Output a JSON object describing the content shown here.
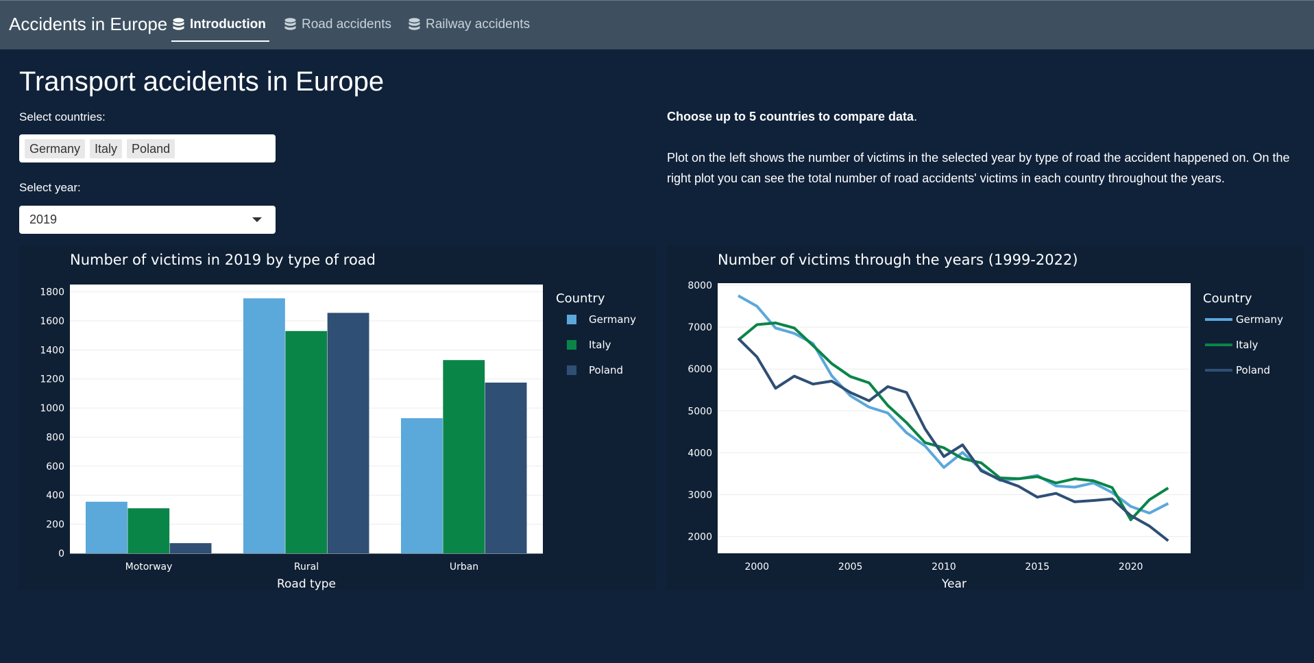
{
  "navbar": {
    "brand": "Accidents in Europe",
    "tabs": [
      {
        "label": "Introduction",
        "active": true
      },
      {
        "label": "Road accidents",
        "active": false
      },
      {
        "label": "Railway accidents",
        "active": false
      }
    ]
  },
  "page": {
    "title": "Transport accidents in Europe",
    "countries_label": "Select countries:",
    "selected_countries": [
      "Germany",
      "Italy",
      "Poland"
    ],
    "year_label": "Select year:",
    "selected_year": "2019",
    "intro_strong": "Choose up to 5 countries to compare data",
    "intro_period": ".",
    "intro_body": "Plot on the left shows the number of victims in the selected year by type of road the accident happened on. On the right plot you can see the total number of road accidents' victims in each country throughout the years."
  },
  "colors": {
    "Germany": "#5ba8db",
    "Italy": "#0a8548",
    "Poland": "#2f4f74"
  },
  "chart_data": [
    {
      "type": "bar",
      "title": "Number of victims in 2019 by type of road",
      "xlabel": "Road type",
      "ylabel": "",
      "categories": [
        "Motorway",
        "Rural",
        "Urban"
      ],
      "ylim": [
        0,
        1850
      ],
      "yticks": [
        0,
        200,
        400,
        600,
        800,
        1000,
        1200,
        1400,
        1600,
        1800
      ],
      "legend_title": "Country",
      "legend_position": "right",
      "series": [
        {
          "name": "Germany",
          "values": [
            355,
            1755,
            930
          ]
        },
        {
          "name": "Italy",
          "values": [
            310,
            1530,
            1330
          ]
        },
        {
          "name": "Poland",
          "values": [
            70,
            1655,
            1175
          ]
        }
      ]
    },
    {
      "type": "line",
      "title": "Number of victims through the years (1999-2022)",
      "xlabel": "Year",
      "ylabel": "",
      "x": [
        1999,
        2000,
        2001,
        2002,
        2003,
        2004,
        2005,
        2006,
        2007,
        2008,
        2009,
        2010,
        2011,
        2012,
        2013,
        2014,
        2015,
        2016,
        2017,
        2018,
        2019,
        2020,
        2021,
        2022
      ],
      "xlim": [
        1997.9,
        2023.2
      ],
      "xticks": [
        2000,
        2005,
        2010,
        2015,
        2020
      ],
      "ylim": [
        1600,
        8050
      ],
      "yticks": [
        2000,
        3000,
        4000,
        5000,
        6000,
        7000,
        8000
      ],
      "legend_title": "Country",
      "legend_position": "right",
      "series": [
        {
          "name": "Germany",
          "values": [
            7750,
            7500,
            6980,
            6850,
            6610,
            5840,
            5360,
            5090,
            4950,
            4480,
            4160,
            3650,
            4010,
            3600,
            3340,
            3380,
            3460,
            3210,
            3180,
            3280,
            3050,
            2720,
            2560,
            2790
          ]
        },
        {
          "name": "Italy",
          "values": [
            6690,
            7060,
            7100,
            6980,
            6560,
            6130,
            5820,
            5670,
            5130,
            4720,
            4240,
            4120,
            3860,
            3760,
            3400,
            3380,
            3430,
            3280,
            3380,
            3330,
            3170,
            2400,
            2880,
            3160
          ]
        },
        {
          "name": "Poland",
          "values": [
            6730,
            6290,
            5540,
            5830,
            5640,
            5710,
            5440,
            5240,
            5580,
            5440,
            4570,
            3910,
            4190,
            3570,
            3360,
            3200,
            2940,
            3030,
            2830,
            2860,
            2900,
            2500,
            2250,
            1900
          ]
        }
      ]
    }
  ]
}
